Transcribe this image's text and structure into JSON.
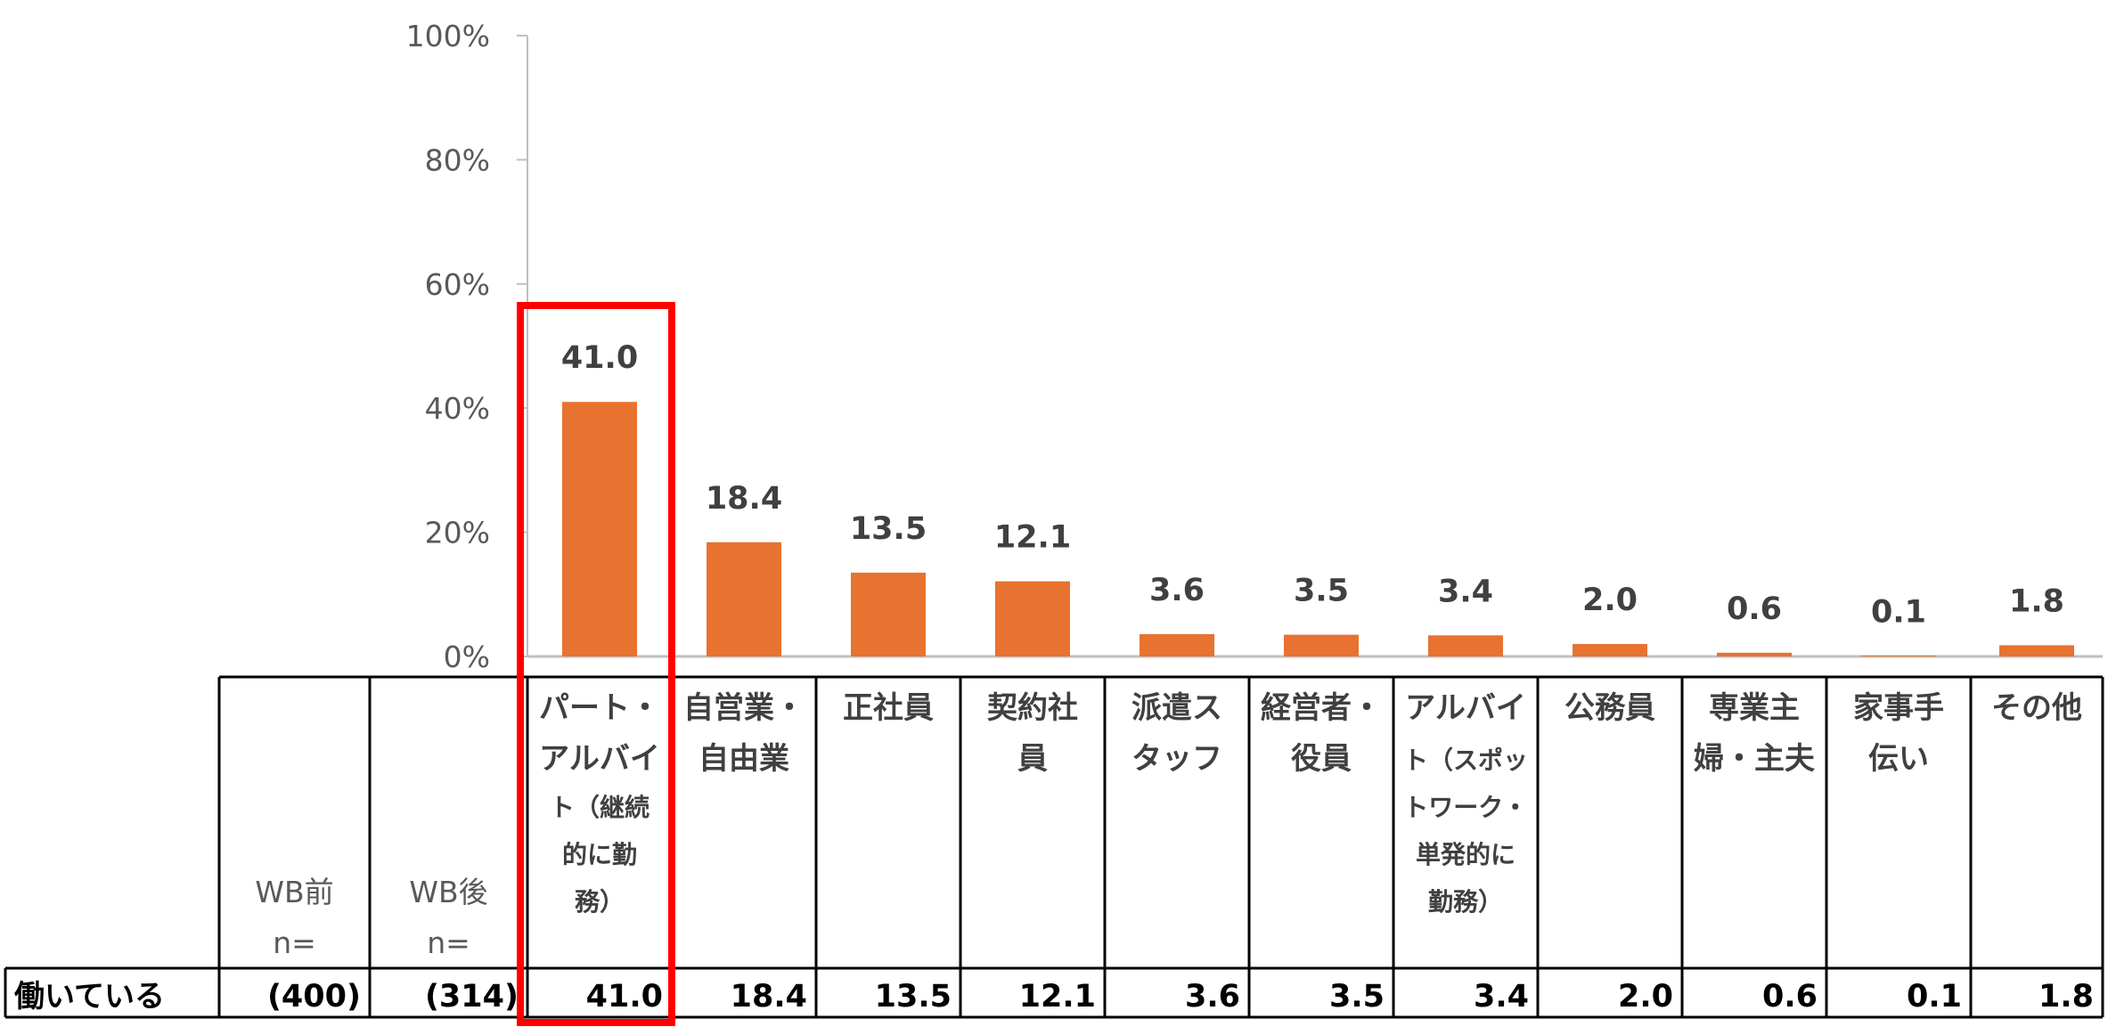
{
  "chart_data": {
    "type": "bar",
    "title": "",
    "xlabel": "",
    "ylabel": "",
    "ylim": [
      0,
      100
    ],
    "y_ticks": [
      0,
      20,
      40,
      60,
      80,
      100
    ],
    "y_tick_suffix": "%",
    "grid": false,
    "bar_color": "#E8722F",
    "highlight_color": "#FF0000",
    "highlight_index": 0,
    "categories": [
      [
        "パート・",
        "アルバイ",
        "ト（継続",
        "的に勤",
        "務）"
      ],
      [
        "自営業・",
        "自由業"
      ],
      [
        "正社員"
      ],
      [
        "契約社",
        "員"
      ],
      [
        "派遣ス",
        "タッフ"
      ],
      [
        "経営者・",
        "役員"
      ],
      [
        "アルバイ",
        "ト（スポッ",
        "トワーク・",
        "単発的に",
        "勤務）"
      ],
      [
        "公務員"
      ],
      [
        "専業主",
        "婦・主夫"
      ],
      [
        "家事手",
        "伝い"
      ],
      [
        "その他"
      ]
    ],
    "values": [
      41.0,
      18.4,
      13.5,
      12.1,
      3.6,
      3.5,
      3.4,
      2.0,
      0.6,
      0.1,
      1.8
    ],
    "value_labels": [
      "41.0",
      "18.4",
      "13.5",
      "12.1",
      "3.6",
      "3.5",
      "3.4",
      "2.0",
      "0.6",
      "0.1",
      "1.8"
    ]
  },
  "table": {
    "header_wb_before": [
      "WB前",
      "n="
    ],
    "header_wb_after": [
      "WB後",
      "n="
    ],
    "row_label": "働いている",
    "n_before": "(400)",
    "n_after": "(314)",
    "values": [
      "41.0",
      "18.4",
      "13.5",
      "12.1",
      "3.6",
      "3.5",
      "3.4",
      "2.0",
      "0.6",
      "0.1",
      "1.8"
    ]
  }
}
